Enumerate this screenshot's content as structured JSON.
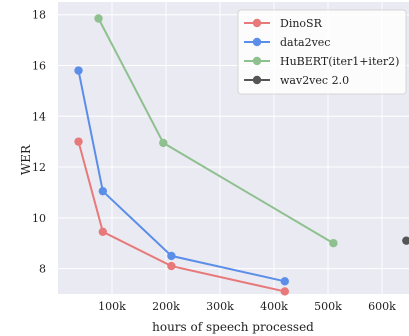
{
  "chart_data": {
    "type": "line",
    "title": "",
    "xlabel": "hours of speech processed",
    "ylabel": "WER",
    "xlim": [
      0,
      650000
    ],
    "ylim": [
      7,
      18.5
    ],
    "xticks": [
      100000,
      200000,
      300000,
      400000,
      500000,
      600000
    ],
    "xtick_labels": [
      "100k",
      "200k",
      "300k",
      "400k",
      "500k",
      "600k"
    ],
    "yticks": [
      8,
      10,
      12,
      14,
      16,
      18
    ],
    "ytick_labels": [
      "8",
      "10",
      "12",
      "14",
      "16",
      "18"
    ],
    "grid": true,
    "legend_position": "top-right",
    "series": [
      {
        "name": "DinoSR",
        "color": "#e8797a",
        "x": [
          38000,
          83000,
          210000,
          420000
        ],
        "y": [
          13.0,
          9.45,
          8.1,
          7.1
        ]
      },
      {
        "name": "data2vec",
        "color": "#5b8ee8",
        "x": [
          38000,
          83000,
          210000,
          420000
        ],
        "y": [
          15.8,
          11.05,
          8.5,
          7.5
        ]
      },
      {
        "name": "HuBERT(iter1+iter2)",
        "color": "#8fc08f",
        "x": [
          75000,
          195000,
          510000
        ],
        "y": [
          17.85,
          12.95,
          9.0
        ]
      },
      {
        "name": "wav2vec 2.0",
        "color": "#555555",
        "x": [
          645000
        ],
        "y": [
          9.1
        ]
      }
    ]
  }
}
